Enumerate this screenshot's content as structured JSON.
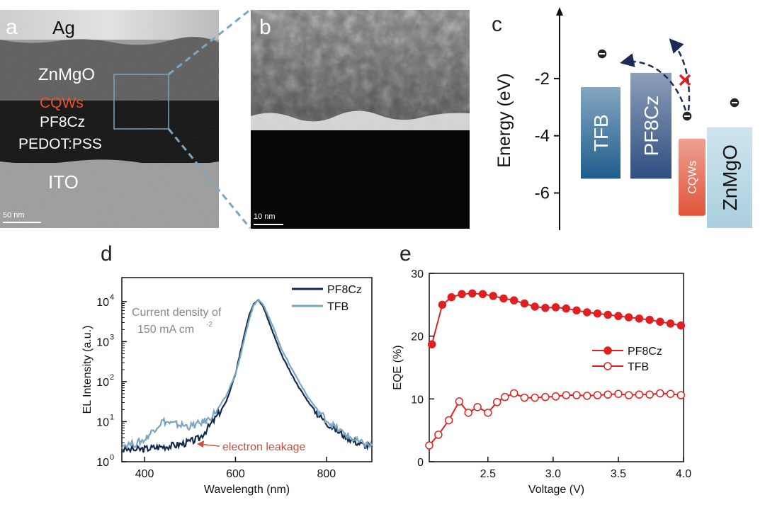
{
  "panel_a": {
    "label": "a",
    "layers": [
      {
        "name": "Ag",
        "color": "#111111"
      },
      {
        "name": "ZnMgO",
        "color": "#ffffff"
      },
      {
        "name": "CQWs",
        "color": "#e8532b"
      },
      {
        "name": "PF8Cz",
        "color": "#ffffff"
      },
      {
        "name": "PEDOT:PSS",
        "color": "#ffffff"
      },
      {
        "name": "ITO",
        "color": "#ffffff"
      }
    ],
    "scale_bar": "50 nm"
  },
  "panel_b": {
    "label": "b",
    "scale_bar": "10 nm"
  },
  "panel_c": {
    "label": "c",
    "chart_data": {
      "type": "energy-level-diagram",
      "ylabel": "Energy (eV)",
      "yticks": [
        "-2",
        "-4",
        "-6"
      ],
      "ylim": [
        -7.3,
        0.5
      ],
      "bars": [
        {
          "name": "TFB",
          "top": -2.3,
          "bottom": -5.5,
          "color": "#1f5d8c"
        },
        {
          "name": "PF8Cz",
          "top": -1.8,
          "bottom": -5.5,
          "color": "#2f4f80"
        },
        {
          "name": "CQWs",
          "top": -4.1,
          "bottom": -6.8,
          "color": "#e0533a"
        },
        {
          "name": "ZnMgO",
          "top": -3.7,
          "bottom": -7.7,
          "color": "#a9cfdf"
        }
      ]
    }
  },
  "panel_d": {
    "label": "d",
    "chart_data": {
      "type": "line",
      "xlabel": "Wavelength (nm)",
      "ylabel": "EL Intensity (a.u.)",
      "xlim": [
        350,
        900
      ],
      "ylim_log10": [
        0,
        4.6
      ],
      "xticks": [
        "400",
        "600",
        "800"
      ],
      "ytick_labels": [
        "10",
        "10",
        "10",
        "10",
        "10"
      ],
      "ytick_exponents": [
        "0",
        "1",
        "2",
        "3",
        "4"
      ],
      "legend": [
        "PF8Cz",
        "TFB"
      ],
      "annotation": {
        "line1": "Current density of",
        "line2": "150 mA cm",
        "sup": "-2"
      },
      "leakage_label": "electron leakage",
      "series": [
        {
          "name": "PF8Cz",
          "color": "#13294d",
          "x": [
            350,
            380,
            400,
            420,
            440,
            460,
            480,
            500,
            520,
            540,
            560,
            580,
            600,
            610,
            620,
            630,
            640,
            650,
            660,
            670,
            680,
            690,
            700,
            720,
            740,
            760,
            780,
            800,
            820,
            840,
            860,
            880,
            900
          ],
          "log10y": [
            0.3,
            0.3,
            0.32,
            0.35,
            0.38,
            0.4,
            0.44,
            0.5,
            0.58,
            0.85,
            1.15,
            1.5,
            2.2,
            2.7,
            3.2,
            3.65,
            3.95,
            4.05,
            3.9,
            3.6,
            3.3,
            3.0,
            2.7,
            2.25,
            1.85,
            1.5,
            1.2,
            0.98,
            0.8,
            0.65,
            0.52,
            0.42,
            0.38
          ]
        },
        {
          "name": "TFB",
          "color": "#7ba6c2",
          "x": [
            350,
            380,
            400,
            420,
            440,
            460,
            480,
            500,
            520,
            540,
            560,
            580,
            600,
            610,
            620,
            630,
            640,
            650,
            660,
            670,
            680,
            690,
            700,
            720,
            740,
            760,
            780,
            800,
            820,
            840,
            860,
            880,
            900
          ],
          "log10y": [
            0.42,
            0.45,
            0.55,
            0.8,
            1.02,
            0.95,
            0.92,
            0.88,
            0.95,
            1.05,
            1.3,
            1.65,
            2.2,
            2.6,
            3.1,
            3.55,
            3.9,
            4.05,
            3.95,
            3.7,
            3.45,
            3.15,
            2.85,
            2.4,
            2.0,
            1.6,
            1.3,
            1.05,
            0.85,
            0.7,
            0.55,
            0.45,
            0.4
          ]
        }
      ]
    }
  },
  "panel_e": {
    "label": "e",
    "chart_data": {
      "type": "line",
      "xlabel": "Voltage (V)",
      "ylabel": "EQE (%)",
      "xlim": [
        2.05,
        4.0
      ],
      "ylim": [
        0,
        30
      ],
      "xticks": [
        "2.5",
        "3.0",
        "3.5",
        "4.0"
      ],
      "yticks": [
        "0",
        "10",
        "20",
        "30"
      ],
      "legend": [
        "PF8Cz",
        "TFB"
      ],
      "series": [
        {
          "name": "PF8Cz",
          "color": "#e02020",
          "filled": true,
          "x": [
            2.07,
            2.15,
            2.22,
            2.3,
            2.38,
            2.46,
            2.54,
            2.62,
            2.7,
            2.78,
            2.86,
            2.94,
            3.02,
            3.1,
            3.18,
            3.26,
            3.34,
            3.42,
            3.5,
            3.58,
            3.66,
            3.74,
            3.82,
            3.9,
            3.98
          ],
          "y": [
            18.7,
            25.0,
            26.2,
            26.7,
            26.8,
            26.7,
            26.4,
            26.0,
            25.7,
            25.2,
            24.7,
            24.5,
            24.6,
            24.4,
            24.1,
            23.8,
            23.6,
            23.4,
            23.2,
            23.0,
            22.8,
            22.6,
            22.3,
            22.0,
            21.7
          ]
        },
        {
          "name": "TFB",
          "color": "#e02020",
          "filled": false,
          "x": [
            2.05,
            2.12,
            2.2,
            2.28,
            2.35,
            2.42,
            2.5,
            2.57,
            2.63,
            2.7,
            2.78,
            2.86,
            2.94,
            3.02,
            3.1,
            3.18,
            3.26,
            3.34,
            3.42,
            3.5,
            3.58,
            3.66,
            3.74,
            3.82,
            3.9,
            3.98
          ],
          "y": [
            2.6,
            4.3,
            6.6,
            9.6,
            7.8,
            8.7,
            7.8,
            9.5,
            10.3,
            10.9,
            10.2,
            10.2,
            10.3,
            10.4,
            10.6,
            10.6,
            10.5,
            10.6,
            10.7,
            10.8,
            10.6,
            10.7,
            10.7,
            10.9,
            10.8,
            10.6
          ]
        }
      ]
    }
  }
}
